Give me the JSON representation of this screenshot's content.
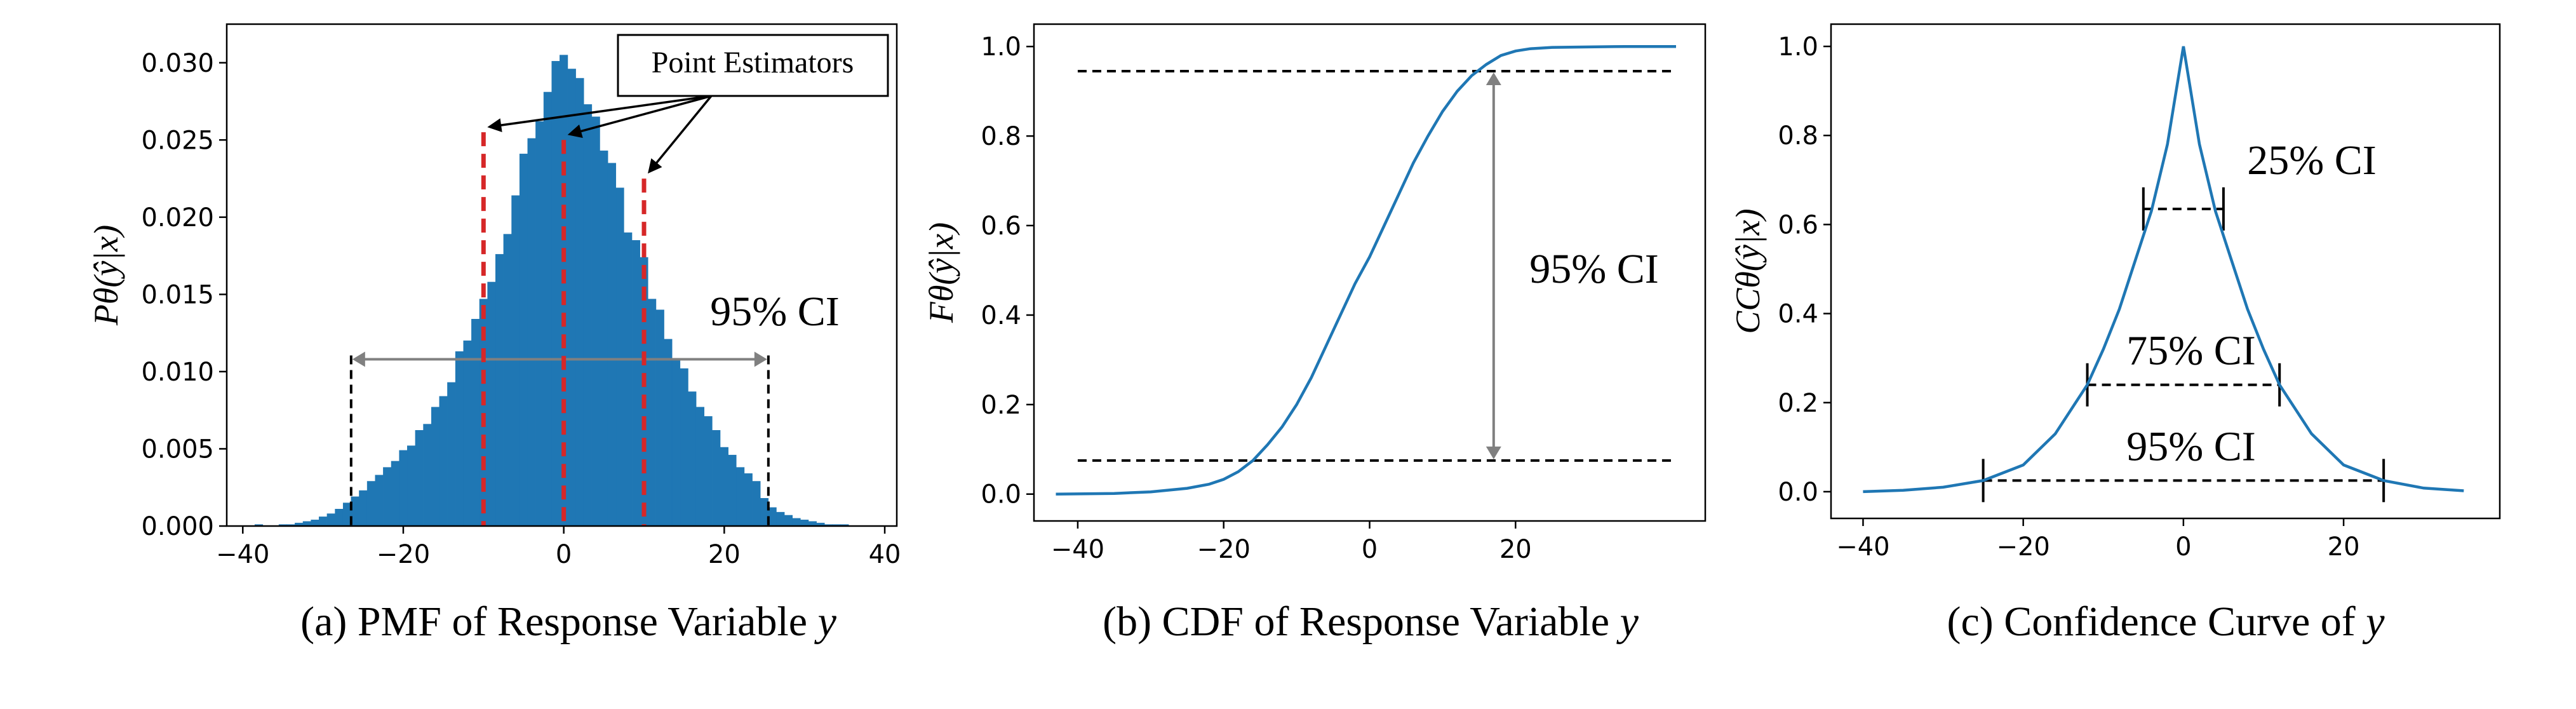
{
  "chart_data": [
    {
      "panel": "a",
      "type": "bar",
      "caption_prefix": "(a) PMF of Response Variable ",
      "caption_var": "y",
      "ylabel": "Pθ(ŷ|x)",
      "xticks": [
        -40,
        -20,
        0,
        20,
        40
      ],
      "yticks": [
        "0.000",
        "0.005",
        "0.010",
        "0.015",
        "0.020",
        "0.025",
        "0.030"
      ],
      "xlim": [
        -42,
        41.5
      ],
      "ylim": [
        0,
        0.0325
      ],
      "bar_color": "#1f77b4",
      "bins": {
        "x": [
          -41,
          -40,
          -39,
          -38,
          -37,
          -36,
          -35,
          -34,
          -33,
          -32,
          -31,
          -30,
          -29,
          -28,
          -27,
          -26,
          -25,
          -24,
          -23,
          -22,
          -21,
          -20,
          -19,
          -18,
          -17,
          -16,
          -15,
          -14,
          -13,
          -12,
          -11,
          -10,
          -9,
          -8,
          -7,
          -6,
          -5,
          -4,
          -3,
          -2,
          -1,
          0,
          1,
          2,
          3,
          4,
          5,
          6,
          7,
          8,
          9,
          10,
          11,
          12,
          13,
          14,
          15,
          16,
          17,
          18,
          19,
          20,
          21,
          22,
          23,
          24,
          25,
          26,
          27,
          28,
          29,
          30,
          31,
          32,
          33,
          34,
          35,
          36,
          37,
          38,
          39
        ],
        "values": [
          0,
          0,
          0,
          0.0001,
          0,
          0,
          0.0001,
          0.0001,
          0.0002,
          0.0003,
          0.0004,
          0.0006,
          0.0008,
          0.0011,
          0.0015,
          0.0019,
          0.0023,
          0.0029,
          0.0033,
          0.0038,
          0.0042,
          0.0049,
          0.0052,
          0.0062,
          0.0066,
          0.0077,
          0.0084,
          0.0093,
          0.0113,
          0.012,
          0.0134,
          0.0147,
          0.0158,
          0.0176,
          0.0189,
          0.0214,
          0.0241,
          0.0251,
          0.0262,
          0.0281,
          0.0301,
          0.0305,
          0.0296,
          0.029,
          0.0273,
          0.0265,
          0.0243,
          0.0235,
          0.0219,
          0.019,
          0.0185,
          0.0174,
          0.0147,
          0.014,
          0.0121,
          0.0108,
          0.0102,
          0.0087,
          0.0077,
          0.0071,
          0.0062,
          0.0051,
          0.0046,
          0.0038,
          0.0034,
          0.0029,
          0.0018,
          0.0012,
          0.0009,
          0.0007,
          0.0005,
          0.0004,
          0.0003,
          0.0002,
          0.0001,
          0.0001,
          0.0001,
          0,
          0,
          0,
          0
        ]
      },
      "point_estimators": [
        -10,
        0,
        10
      ],
      "point_estimators_top": [
        0.0255,
        0.025,
        0.0225
      ],
      "point_estimators_label": "Point Estimators",
      "ci": {
        "label": "95% CI",
        "lo": -26.5,
        "hi": 25.5,
        "y": 0.0108
      }
    },
    {
      "panel": "b",
      "type": "line",
      "caption_prefix": "(b) CDF of Response Variable ",
      "caption_var": "y",
      "ylabel": "Fθ(ŷ|x)",
      "xticks": [
        -40,
        -20,
        0,
        20
      ],
      "yticks": [
        "0.0",
        "0.2",
        "0.4",
        "0.6",
        "0.8",
        "1.0"
      ],
      "xlim": [
        -46,
        46
      ],
      "ylim": [
        -0.06,
        1.05
      ],
      "line_color": "#1f77b4",
      "x": [
        -43,
        -35,
        -30,
        -25,
        -22,
        -20,
        -18,
        -16,
        -14,
        -12,
        -10,
        -8,
        -6,
        -4,
        -2,
        0,
        2,
        4,
        6,
        8,
        10,
        12,
        14,
        16,
        18,
        20,
        22,
        25,
        30,
        35,
        42
      ],
      "y": [
        0,
        0.0015,
        0.005,
        0.013,
        0.022,
        0.033,
        0.05,
        0.075,
        0.11,
        0.15,
        0.2,
        0.26,
        0.33,
        0.4,
        0.47,
        0.53,
        0.6,
        0.67,
        0.74,
        0.8,
        0.855,
        0.9,
        0.935,
        0.96,
        0.98,
        0.99,
        0.995,
        0.998,
        0.999,
        1.0,
        1.0
      ],
      "ci": {
        "label": "95% CI",
        "lower": 0.075,
        "upper": 0.945,
        "arrow_x": 17
      }
    },
    {
      "panel": "c",
      "type": "line",
      "caption_prefix": "(c) Confidence Curve of ",
      "caption_var": "y",
      "ylabel": "CCθ(ŷ|x)",
      "xticks": [
        -40,
        -20,
        0,
        20
      ],
      "yticks": [
        "0.0",
        "0.2",
        "0.4",
        "0.6",
        "0.8",
        "1.0"
      ],
      "xlim": [
        -44,
        39.5
      ],
      "ylim": [
        -0.06,
        1.05
      ],
      "line_color": "#1f77b4",
      "x": [
        -40,
        -35,
        -30,
        -25,
        -20,
        -16,
        -12,
        -10,
        -8,
        -6,
        -4,
        -2,
        0,
        2,
        4,
        6,
        8,
        10,
        12,
        16,
        20,
        25,
        30,
        35
      ],
      "y": [
        0,
        0.003,
        0.01,
        0.025,
        0.06,
        0.13,
        0.24,
        0.32,
        0.41,
        0.52,
        0.63,
        0.78,
        1.0,
        0.78,
        0.63,
        0.52,
        0.41,
        0.32,
        0.24,
        0.13,
        0.06,
        0.025,
        0.008,
        0.002
      ],
      "intervals": [
        {
          "label": "25% CI",
          "lo": -5,
          "hi": 5,
          "y": 0.635
        },
        {
          "label": "75% CI",
          "lo": -12,
          "hi": 12,
          "y": 0.24
        },
        {
          "label": "95% CI",
          "lo": -25,
          "hi": 25,
          "y": 0.025
        }
      ]
    }
  ]
}
